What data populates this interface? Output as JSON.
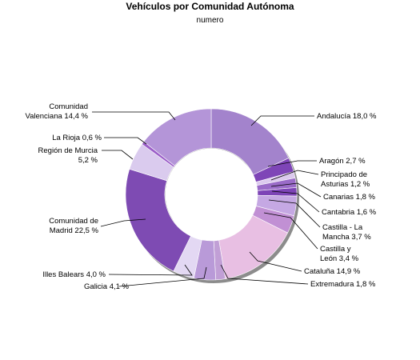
{
  "chart_data": {
    "type": "pie",
    "donut": true,
    "title": "Vehículos por Comunidad Autónoma",
    "subtitle": "numero",
    "unit": "%",
    "slices": [
      {
        "name": "Andalucía",
        "label": "Andalucía 18,0 %",
        "value": 18.0,
        "color": "#a383cc"
      },
      {
        "name": "Aragón",
        "label": "Aragón 2,7 %",
        "value": 2.7,
        "color": "#7e45b7"
      },
      {
        "name": "Principado de Asturias",
        "label": "Principado de Asturias 1,2 %",
        "value": 1.2,
        "color": "#dccaee"
      },
      {
        "name": "Canarias",
        "label": "Canarias 1,8 %",
        "value": 1.8,
        "color": "#9a6bc8"
      },
      {
        "name": "Cantabria",
        "label": "Cantabria 1,6 %",
        "value": 1.6,
        "color": "#7d44b6"
      },
      {
        "name": "Castilla - La Mancha",
        "label": "Castilla - La Mancha 3,7 %",
        "value": 3.7,
        "color": "#c5a8e3"
      },
      {
        "name": "Castilla y León",
        "label": "Castilla y León 3,4 %",
        "value": 3.4,
        "color": "#c190d4"
      },
      {
        "name": "Cataluña",
        "label": "Cataluña 14,9 %",
        "value": 14.9,
        "color": "#e8bfe3"
      },
      {
        "name": "Extremadura",
        "label": "Extremadura 1,8 %",
        "value": 1.8,
        "color": "#c19fd6"
      },
      {
        "name": "Galicia",
        "label": "Galicia 4,1 %",
        "value": 4.1,
        "color": "#b99ad8"
      },
      {
        "name": "Illes Balears",
        "label": "Illes Balears 4,0 %",
        "value": 4.0,
        "color": "#e3d8f3"
      },
      {
        "name": "Comunidad de Madrid",
        "label": "Comunidad de Madrid 22,5 %",
        "value": 22.5,
        "color": "#7e4bb3"
      },
      {
        "name": "Región de Murcia",
        "label": "Región de Murcia 5,2 %",
        "value": 5.2,
        "color": "#dacbee"
      },
      {
        "name": "La Rioja",
        "label": "La Rioja 0,6 %",
        "value": 0.6,
        "color": "#9b5ec8"
      },
      {
        "name": "Comunidad Valenciana",
        "label": "Comunidad Valenciana 14,4 %",
        "value": 14.4,
        "color": "#b495d8"
      }
    ],
    "legend": "none"
  }
}
